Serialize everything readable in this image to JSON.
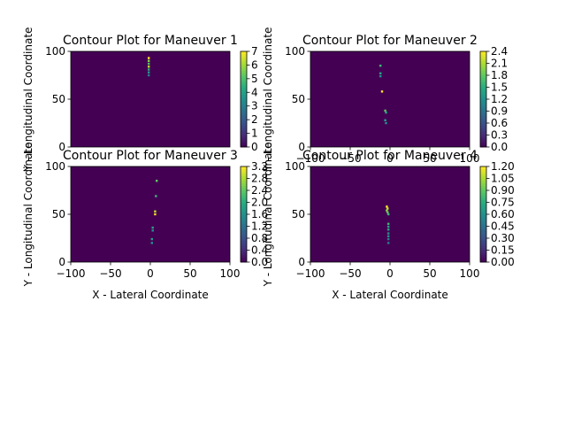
{
  "chart_data": [
    {
      "type": "heatmap",
      "title": "Contour Plot for Maneuver 1",
      "xlabel": "",
      "ylabel": "Y - Longitudinal Coordinate",
      "xlim": [
        -100,
        100
      ],
      "ylim": [
        0,
        100
      ],
      "xticks": [],
      "yticks": [
        "0",
        "50",
        "100"
      ],
      "colorbar": {
        "min": 0,
        "max": 7,
        "ticks": [
          "0",
          "1",
          "2",
          "3",
          "4",
          "5",
          "6",
          "7"
        ]
      },
      "points": [
        {
          "x": -2,
          "y": 93,
          "v": 7
        },
        {
          "x": -2,
          "y": 90,
          "v": 5
        },
        {
          "x": -2,
          "y": 87,
          "v": 4
        },
        {
          "x": -2,
          "y": 84,
          "v": 6
        },
        {
          "x": -2,
          "y": 81,
          "v": 3
        },
        {
          "x": -2,
          "y": 78,
          "v": 2
        },
        {
          "x": -2,
          "y": 75,
          "v": 1
        }
      ]
    },
    {
      "type": "heatmap",
      "title": "Contour Plot for Maneuver 2",
      "xlabel": "",
      "ylabel": "Y - Longitudinal Coordinate",
      "xlim": [
        -100,
        100
      ],
      "ylim": [
        0,
        100
      ],
      "xticks": [
        "−100",
        "−50",
        "0",
        "50",
        "100"
      ],
      "yticks": [
        "0",
        "50",
        "100"
      ],
      "colorbar": {
        "min": 0,
        "max": 2.4,
        "ticks": [
          "0.0",
          "0.3",
          "0.6",
          "0.9",
          "1.2",
          "1.5",
          "1.8",
          "2.1",
          "2.4"
        ]
      },
      "points": [
        {
          "x": -12,
          "y": 85,
          "v": 1.2
        },
        {
          "x": -12,
          "y": 77,
          "v": 0.9
        },
        {
          "x": -12,
          "y": 74,
          "v": 0.6
        },
        {
          "x": -10,
          "y": 58,
          "v": 2.4
        },
        {
          "x": -6,
          "y": 38,
          "v": 1.5
        },
        {
          "x": -5,
          "y": 36,
          "v": 1.0
        },
        {
          "x": -6,
          "y": 28,
          "v": 0.8
        },
        {
          "x": -5,
          "y": 25,
          "v": 0.6
        }
      ]
    },
    {
      "type": "heatmap",
      "title": "Contour Plot for Maneuver 3",
      "xlabel": "X - Lateral Coordinate",
      "ylabel": "Y - Longitudinal Coordinate",
      "xlim": [
        -100,
        100
      ],
      "ylim": [
        0,
        100
      ],
      "xticks": [
        "−100",
        "−50",
        "0",
        "50",
        "100"
      ],
      "yticks": [
        "0",
        "50",
        "100"
      ],
      "colorbar": {
        "min": 0,
        "max": 3.2,
        "ticks": [
          "0.0",
          "0.4",
          "0.8",
          "1.2",
          "1.6",
          "2.0",
          "2.4",
          "2.8",
          "3.2"
        ]
      },
      "points": [
        {
          "x": 8,
          "y": 85,
          "v": 2.0
        },
        {
          "x": 7,
          "y": 69,
          "v": 1.6
        },
        {
          "x": 6,
          "y": 53,
          "v": 2.8
        },
        {
          "x": 6,
          "y": 50,
          "v": 3.2
        },
        {
          "x": 3,
          "y": 36,
          "v": 1.2
        },
        {
          "x": 3,
          "y": 33,
          "v": 0.8
        },
        {
          "x": 2,
          "y": 24,
          "v": 1.0
        },
        {
          "x": 2,
          "y": 20,
          "v": 0.8
        }
      ]
    },
    {
      "type": "heatmap",
      "title": "Contour Plot for Maneuver 4",
      "xlabel": "X - Lateral Coordinate",
      "ylabel": "Y - Longitudinal Coordinate",
      "xlim": [
        -100,
        100
      ],
      "ylim": [
        0,
        100
      ],
      "xticks": [
        "−100",
        "−50",
        "0",
        "50",
        "100"
      ],
      "yticks": [
        "0",
        "50",
        "100"
      ],
      "colorbar": {
        "min": 0,
        "max": 1.2,
        "ticks": [
          "0.00",
          "0.15",
          "0.30",
          "0.45",
          "0.60",
          "0.75",
          "0.90",
          "1.05",
          "1.20"
        ]
      },
      "points": [
        {
          "x": -4,
          "y": 58,
          "v": 1.2
        },
        {
          "x": -3,
          "y": 56,
          "v": 1.05
        },
        {
          "x": -4,
          "y": 54,
          "v": 0.9
        },
        {
          "x": -3,
          "y": 52,
          "v": 0.75
        },
        {
          "x": -2,
          "y": 50,
          "v": 0.6
        },
        {
          "x": -2,
          "y": 40,
          "v": 0.6
        },
        {
          "x": -2,
          "y": 37,
          "v": 0.45
        },
        {
          "x": -2,
          "y": 34,
          "v": 0.45
        },
        {
          "x": -2,
          "y": 30,
          "v": 0.3
        },
        {
          "x": -2,
          "y": 27,
          "v": 0.3
        },
        {
          "x": -2,
          "y": 24,
          "v": 0.15
        },
        {
          "x": -2,
          "y": 20,
          "v": 0.15
        }
      ]
    }
  ]
}
